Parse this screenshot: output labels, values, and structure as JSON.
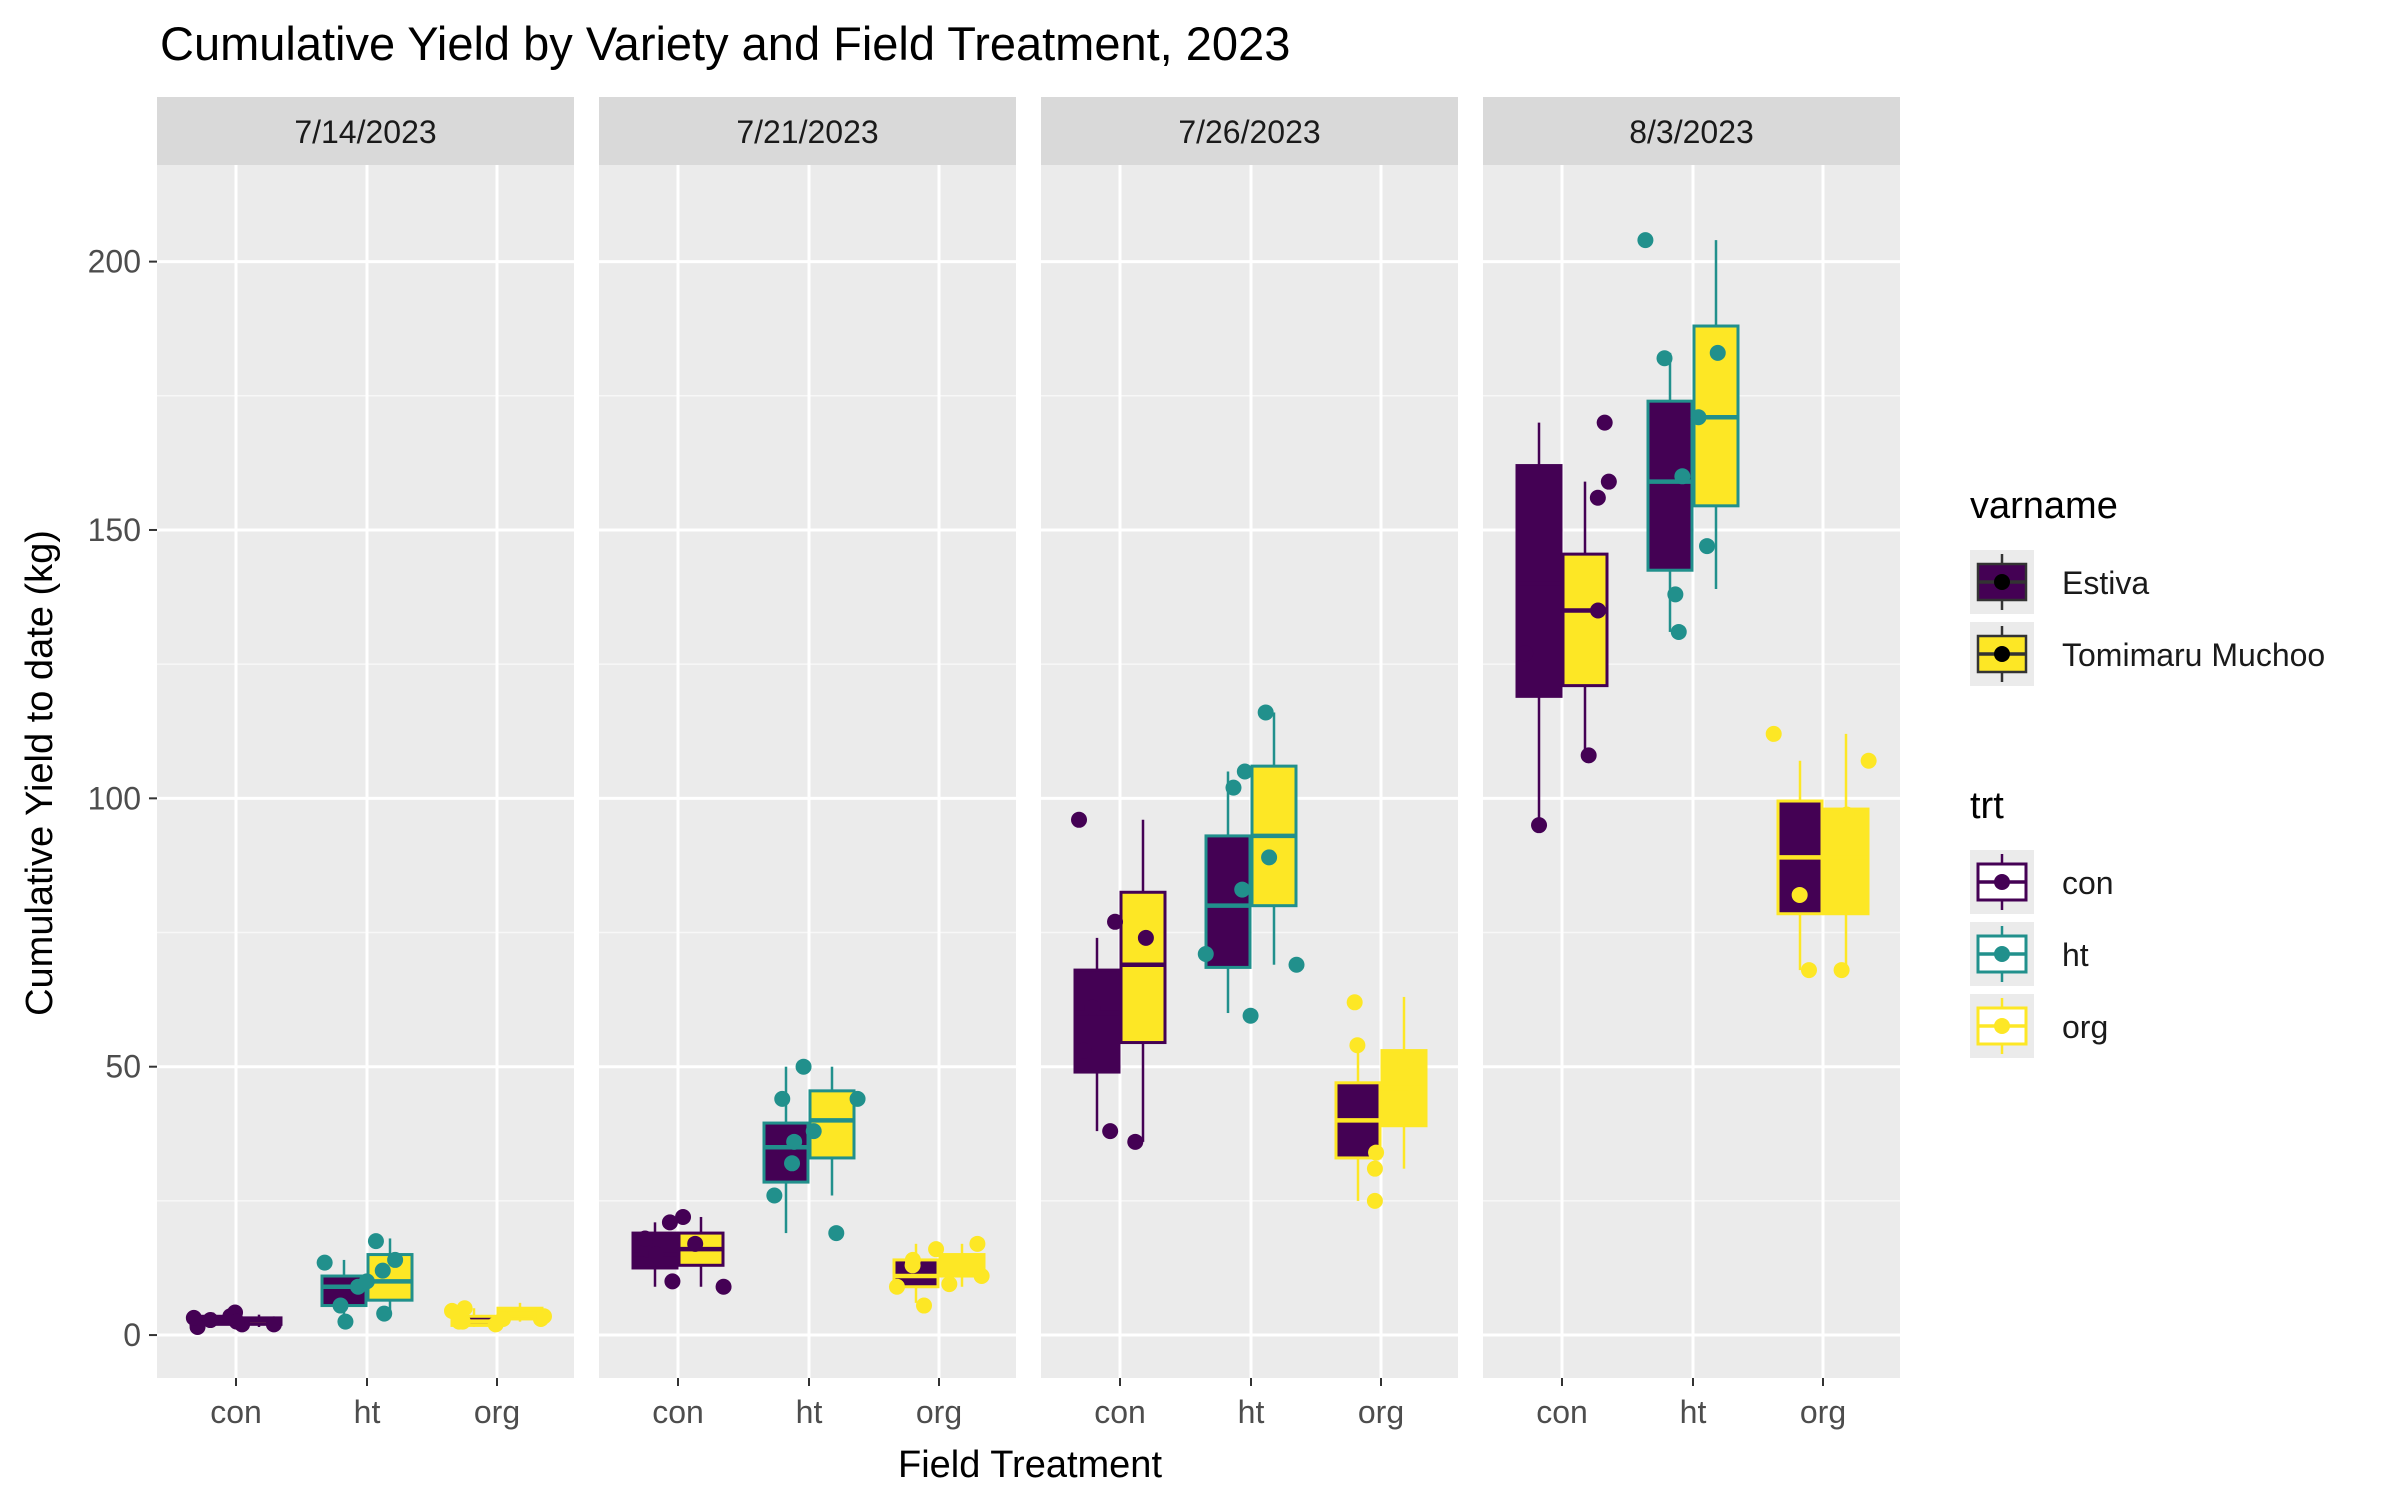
{
  "chart_data": {
    "type": "box",
    "title": "Cumulative Yield by Variety and Field Treatment, 2023",
    "xlabel": "Field Treatment",
    "ylabel": "Cumulative Yield to date (kg)",
    "ylim": [
      -8,
      218
    ],
    "yticks": [
      0,
      50,
      100,
      150,
      200
    ],
    "categories": [
      "con",
      "ht",
      "org"
    ],
    "panels": [
      "7/14/2023",
      "7/21/2023",
      "7/26/2023",
      "8/3/2023"
    ],
    "grid": true,
    "legend_placement": "right",
    "legends": {
      "varname": {
        "title": "varname",
        "entries": [
          {
            "label": "Estiva",
            "fill": "#440154"
          },
          {
            "label": "Tomimaru Muchoo",
            "fill": "#FDE725"
          }
        ]
      },
      "trt": {
        "title": "trt",
        "entries": [
          {
            "label": "con",
            "color": "#440154"
          },
          {
            "label": "ht",
            "color": "#21908C"
          },
          {
            "label": "org",
            "color": "#FDE725"
          }
        ]
      }
    },
    "colors": {
      "Estiva": "#440154",
      "Tomimaru Muchoo": "#FDE725",
      "con": "#440154",
      "ht": "#21908C",
      "org": "#FDE725"
    },
    "boxes": [
      {
        "panel": "7/14/2023",
        "trt": "con",
        "varname": "Estiva",
        "min": 1.5,
        "q1": 2.0,
        "median": 2.8,
        "q3": 3.5,
        "max": 4.2
      },
      {
        "panel": "7/14/2023",
        "trt": "con",
        "varname": "Tomimaru Muchoo",
        "min": 1.5,
        "q1": 2.0,
        "median": 2.7,
        "q3": 3.2,
        "max": 3.8
      },
      {
        "panel": "7/14/2023",
        "trt": "ht",
        "varname": "Estiva",
        "min": 3,
        "q1": 5.5,
        "median": 9,
        "q3": 11,
        "max": 14
      },
      {
        "panel": "7/14/2023",
        "trt": "ht",
        "varname": "Tomimaru Muchoo",
        "min": 4,
        "q1": 6.5,
        "median": 10,
        "q3": 15,
        "max": 18
      },
      {
        "panel": "7/14/2023",
        "trt": "org",
        "varname": "Estiva",
        "min": 1.5,
        "q1": 1.8,
        "median": 2.5,
        "q3": 3.5,
        "max": 5
      },
      {
        "panel": "7/14/2023",
        "trt": "org",
        "varname": "Tomimaru Muchoo",
        "min": 2.5,
        "q1": 3.0,
        "median": 4,
        "q3": 5,
        "max": 6
      },
      {
        "panel": "7/21/2023",
        "trt": "con",
        "varname": "Estiva",
        "min": 9,
        "q1": 12.5,
        "median": 15,
        "q3": 19,
        "max": 21
      },
      {
        "panel": "7/21/2023",
        "trt": "con",
        "varname": "Tomimaru Muchoo",
        "min": 9,
        "q1": 13,
        "median": 16,
        "q3": 19,
        "max": 22
      },
      {
        "panel": "7/21/2023",
        "trt": "ht",
        "varname": "Estiva",
        "min": 19,
        "q1": 28.5,
        "median": 35,
        "q3": 39.5,
        "max": 50
      },
      {
        "panel": "7/21/2023",
        "trt": "ht",
        "varname": "Tomimaru Muchoo",
        "min": 26,
        "q1": 33,
        "median": 40,
        "q3": 45.5,
        "max": 50
      },
      {
        "panel": "7/21/2023",
        "trt": "org",
        "varname": "Estiva",
        "min": 6,
        "q1": 9,
        "median": 11,
        "q3": 14,
        "max": 17
      },
      {
        "panel": "7/21/2023",
        "trt": "org",
        "varname": "Tomimaru Muchoo",
        "min": 9,
        "q1": 11,
        "median": 13,
        "q3": 15,
        "max": 17
      },
      {
        "panel": "7/26/2023",
        "trt": "con",
        "varname": "Estiva",
        "min": 38,
        "q1": 49,
        "median": 60,
        "q3": 68,
        "max": 74
      },
      {
        "panel": "7/26/2023",
        "trt": "con",
        "varname": "Tomimaru Muchoo",
        "min": 36,
        "q1": 54.5,
        "median": 69,
        "q3": 82.5,
        "max": 96
      },
      {
        "panel": "7/26/2023",
        "trt": "ht",
        "varname": "Estiva",
        "min": 60,
        "q1": 68.5,
        "median": 80,
        "q3": 93,
        "max": 105
      },
      {
        "panel": "7/26/2023",
        "trt": "ht",
        "varname": "Tomimaru Muchoo",
        "min": 69,
        "q1": 80,
        "median": 93,
        "q3": 106,
        "max": 116
      },
      {
        "panel": "7/26/2023",
        "trt": "org",
        "varname": "Estiva",
        "min": 25,
        "q1": 33,
        "median": 40,
        "q3": 47,
        "max": 54
      },
      {
        "panel": "7/26/2023",
        "trt": "org",
        "varname": "Tomimaru Muchoo",
        "min": 31,
        "q1": 39,
        "median": 46,
        "q3": 53,
        "max": 63
      },
      {
        "panel": "8/3/2023",
        "trt": "con",
        "varname": "Estiva",
        "min": 95,
        "q1": 119,
        "median": 140,
        "q3": 162,
        "max": 170
      },
      {
        "panel": "8/3/2023",
        "trt": "con",
        "varname": "Tomimaru Muchoo",
        "min": 108,
        "q1": 121,
        "median": 135,
        "q3": 145.5,
        "max": 159
      },
      {
        "panel": "8/3/2023",
        "trt": "ht",
        "varname": "Estiva",
        "min": 131,
        "q1": 142.5,
        "median": 159,
        "q3": 174,
        "max": 183
      },
      {
        "panel": "8/3/2023",
        "trt": "ht",
        "varname": "Tomimaru Muchoo",
        "min": 139,
        "q1": 154.5,
        "median": 171,
        "q3": 188,
        "max": 204
      },
      {
        "panel": "8/3/2023",
        "trt": "org",
        "varname": "Estiva",
        "min": 68,
        "q1": 78.5,
        "median": 89,
        "q3": 99.5,
        "max": 107
      },
      {
        "panel": "8/3/2023",
        "trt": "org",
        "varname": "Tomimaru Muchoo",
        "min": 68,
        "q1": 78.5,
        "median": 89,
        "q3": 98,
        "max": 112
      }
    ],
    "points": [
      {
        "panel": "7/14/2023",
        "trt": "con",
        "values": [
          4.2,
          2.0,
          1.5,
          2.8,
          3.5,
          2.5,
          3.2,
          2.0
        ]
      },
      {
        "panel": "7/14/2023",
        "trt": "ht",
        "values": [
          17.5,
          9,
          2.5,
          14,
          12,
          13.5,
          10,
          5.5,
          4
        ]
      },
      {
        "panel": "7/14/2023",
        "trt": "org",
        "values": [
          2.5,
          3,
          2,
          5,
          4.5,
          3,
          3.5,
          2.5
        ]
      },
      {
        "panel": "7/21/2023",
        "trt": "con",
        "values": [
          10,
          9,
          16,
          21,
          22,
          17,
          15,
          18
        ]
      },
      {
        "panel": "7/21/2023",
        "trt": "ht",
        "values": [
          44,
          50,
          44,
          38,
          32,
          26,
          19,
          36
        ]
      },
      {
        "panel": "7/21/2023",
        "trt": "org",
        "values": [
          5.5,
          9,
          11,
          14,
          17,
          16,
          13,
          9.5
        ]
      },
      {
        "panel": "7/26/2023",
        "trt": "con",
        "values": [
          38,
          74,
          36,
          53,
          61,
          77,
          96
        ]
      },
      {
        "panel": "7/26/2023",
        "trt": "ht",
        "values": [
          71,
          83,
          89,
          116,
          69,
          102,
          105,
          59.5
        ]
      },
      {
        "panel": "7/26/2023",
        "trt": "org",
        "values": [
          25,
          45,
          34,
          31,
          54,
          62,
          51
        ]
      },
      {
        "panel": "8/3/2023",
        "trt": "con",
        "values": [
          127,
          95,
          108,
          156,
          159,
          170,
          135
        ]
      },
      {
        "panel": "8/3/2023",
        "trt": "ht",
        "values": [
          183,
          147,
          171,
          204,
          138,
          131,
          182,
          160
        ]
      },
      {
        "panel": "8/3/2023",
        "trt": "org",
        "values": [
          68,
          97,
          82,
          107,
          112,
          68
        ]
      }
    ]
  }
}
